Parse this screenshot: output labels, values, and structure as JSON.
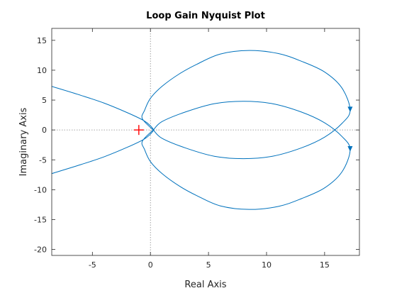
{
  "chart_data": {
    "type": "line",
    "title": "Loop Gain Nyquist Plot",
    "xlabel": "Real Axis",
    "ylabel": "Imaginary Axis",
    "xlim": [
      -8.5,
      18
    ],
    "ylim": [
      -21,
      17
    ],
    "xticks": [
      -5,
      0,
      5,
      10,
      15
    ],
    "yticks": [
      -20,
      -15,
      -10,
      -5,
      0,
      5,
      10,
      15
    ],
    "grid": false,
    "zero_lines": true,
    "box": true,
    "critical_point": {
      "x": -1,
      "y": 0,
      "marker": "+"
    },
    "colors": {
      "curve": "#0072BD",
      "critical": "#FF0000",
      "zero_lines": "#8a8a8a",
      "axes": "#262626"
    },
    "series": [
      {
        "values": [
          [
            -8.5,
            7.3
          ],
          [
            -6,
            5.8
          ],
          [
            -4,
            4.5
          ],
          [
            -2,
            2.9
          ],
          [
            -0.6,
            1.6
          ],
          [
            0,
            0.7
          ],
          [
            0.25,
            0
          ],
          [
            -0.7,
            1.9
          ],
          [
            -0.5,
            3.3
          ],
          [
            0,
            5.3
          ],
          [
            1,
            7.3
          ],
          [
            2.5,
            9.4
          ],
          [
            4,
            11
          ],
          [
            6,
            12.7
          ],
          [
            8.5,
            13.3
          ],
          [
            11,
            12.8
          ],
          [
            13,
            11.5
          ],
          [
            15,
            9.7
          ],
          [
            16.5,
            7
          ],
          [
            17.2,
            3.3
          ],
          [
            16.5,
            1.1
          ],
          [
            15,
            -1.2
          ],
          [
            13,
            -3
          ],
          [
            10.5,
            -4.4
          ],
          [
            8,
            -4.8
          ],
          [
            5.5,
            -4.4
          ],
          [
            3,
            -3
          ],
          [
            1,
            -1.4
          ],
          [
            0.25,
            0
          ]
        ],
        "arrows": [
          [
            17.2,
            3.3
          ]
        ]
      },
      {
        "values": [
          [
            -8.5,
            -7.3
          ],
          [
            -6,
            -5.8
          ],
          [
            -4,
            -4.5
          ],
          [
            -2,
            -2.9
          ],
          [
            -0.6,
            -1.6
          ],
          [
            0,
            -0.7
          ],
          [
            0.25,
            0
          ],
          [
            -0.7,
            -1.9
          ],
          [
            -0.5,
            -3.3
          ],
          [
            0,
            -5.3
          ],
          [
            1,
            -7.3
          ],
          [
            2.5,
            -9.4
          ],
          [
            4,
            -11
          ],
          [
            6,
            -12.7
          ],
          [
            8.5,
            -13.3
          ],
          [
            11,
            -12.8
          ],
          [
            13,
            -11.5
          ],
          [
            15,
            -9.7
          ],
          [
            16.5,
            -7
          ],
          [
            17.2,
            -3.3
          ],
          [
            16.5,
            -1.1
          ],
          [
            15,
            1.2
          ],
          [
            13,
            3
          ],
          [
            10.5,
            4.4
          ],
          [
            8,
            4.8
          ],
          [
            5.5,
            4.4
          ],
          [
            3,
            3
          ],
          [
            1,
            1.4
          ],
          [
            0.25,
            0
          ]
        ],
        "arrows": [
          [
            17.2,
            -3.3
          ]
        ]
      }
    ]
  }
}
